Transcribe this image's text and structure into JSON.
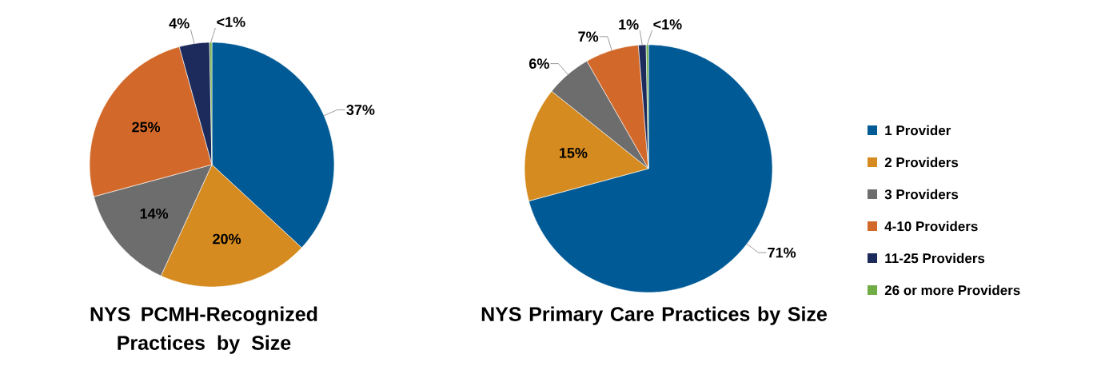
{
  "chart_data": [
    {
      "type": "pie",
      "title": "NYS PCMH-Recognized Practices by Size",
      "categories": [
        null,
        null,
        null,
        null,
        null,
        null
      ],
      "values": [
        37,
        20,
        14,
        25,
        4,
        0.3
      ],
      "value_labels": [
        "37%",
        "20%",
        "14%",
        "25%",
        "4%",
        "<1%"
      ],
      "colors": [
        "#005a96",
        "#d58b1f",
        "#6d6d6d",
        "#d2692a",
        "#1c2a5c",
        "#70ad47"
      ],
      "legend": false
    },
    {
      "type": "pie",
      "title": "NYS Primary Care Practices by Size",
      "categories": [
        "1 Provider",
        "2 Providers",
        "3 Providers",
        "4-10 Providers",
        "11-25 Providers",
        "26 or more Providers"
      ],
      "values": [
        71,
        15,
        6,
        7,
        1,
        0.3
      ],
      "value_labels": [
        "71%",
        "15%",
        "6%",
        "7%",
        "1%",
        "<1%"
      ],
      "colors": [
        "#005a96",
        "#d58b1f",
        "#6d6d6d",
        "#d2692a",
        "#1c2a5c",
        "#70ad47"
      ],
      "legend": "right"
    }
  ]
}
